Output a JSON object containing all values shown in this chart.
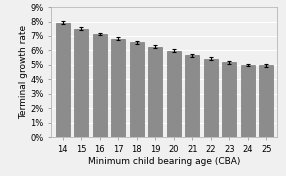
{
  "categories": [
    14,
    15,
    16,
    17,
    18,
    19,
    20,
    21,
    22,
    23,
    24,
    25
  ],
  "values": [
    7.92,
    7.5,
    7.15,
    6.82,
    6.55,
    6.25,
    5.98,
    5.68,
    5.42,
    5.18,
    5.0,
    4.97
  ],
  "errors": [
    0.1,
    0.1,
    0.08,
    0.09,
    0.1,
    0.1,
    0.09,
    0.1,
    0.1,
    0.09,
    0.08,
    0.12
  ],
  "bar_color": "#8C8C8C",
  "bar_edge_color": "#6a6a6a",
  "xlabel": "Minimum child bearing age (CBA)",
  "ylabel": "Terminal growth rate",
  "ylim": [
    0,
    9
  ],
  "yticks": [
    0,
    1,
    2,
    3,
    4,
    5,
    6,
    7,
    8,
    9
  ],
  "ytick_labels": [
    "0%",
    "1%",
    "2%",
    "3%",
    "4%",
    "5%",
    "6%",
    "7%",
    "8%",
    "9%"
  ],
  "background_color": "#f0f0f0",
  "plot_bg_color": "#f0f0f0",
  "grid_color": "#ffffff",
  "xlabel_fontsize": 6.5,
  "ylabel_fontsize": 6.5,
  "tick_fontsize": 6
}
